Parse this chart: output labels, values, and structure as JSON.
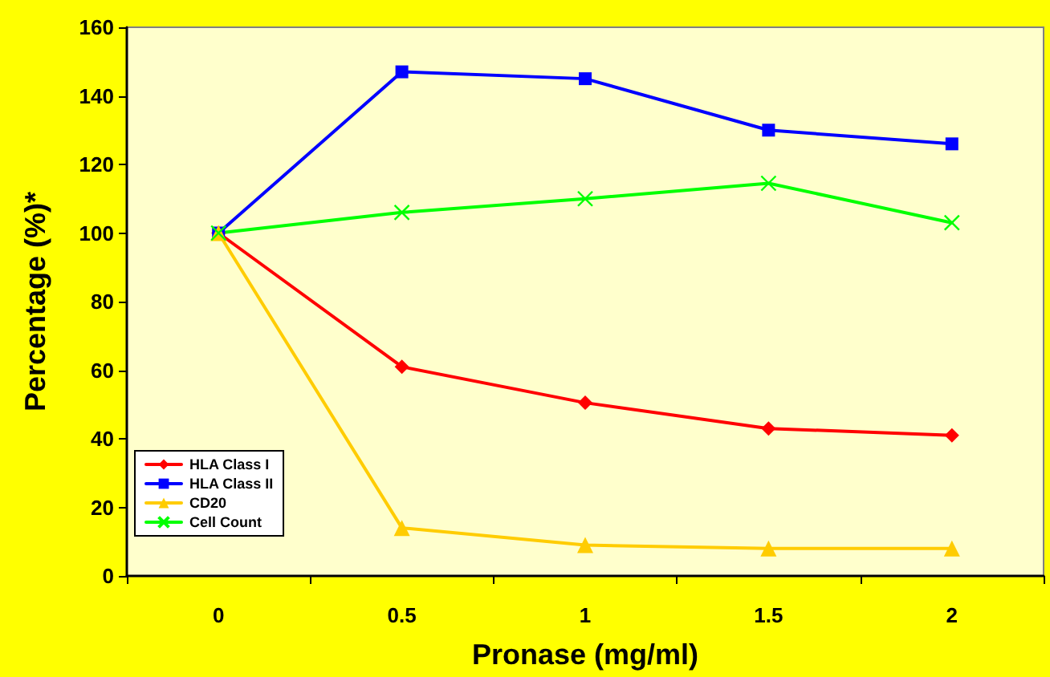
{
  "chart_data": {
    "type": "line",
    "xlabel": "Pronase (mg/ml)",
    "ylabel": "Percentage (%)*",
    "categories": [
      "0",
      "0.5",
      "1",
      "1.5",
      "2"
    ],
    "series": [
      {
        "name": "HLA Class I",
        "color": "#ff0000",
        "marker": "diamond",
        "values": [
          100,
          61,
          50.5,
          43,
          41
        ]
      },
      {
        "name": "HLA Class II",
        "color": "#0000ff",
        "marker": "square",
        "values": [
          100,
          147,
          145,
          130,
          126
        ]
      },
      {
        "name": "CD20",
        "color": "#ffcc00",
        "marker": "triangle",
        "values": [
          100,
          14,
          9,
          8,
          8
        ]
      },
      {
        "name": "Cell Count",
        "color": "#00ff00",
        "marker": "cross",
        "values": [
          100,
          106,
          110,
          114.5,
          103
        ]
      }
    ],
    "ylim": [
      0,
      160
    ],
    "yticks": [
      0,
      20,
      40,
      60,
      80,
      100,
      120,
      140,
      160
    ],
    "grid": false,
    "legend": "bottom left",
    "line_style": "solid"
  }
}
